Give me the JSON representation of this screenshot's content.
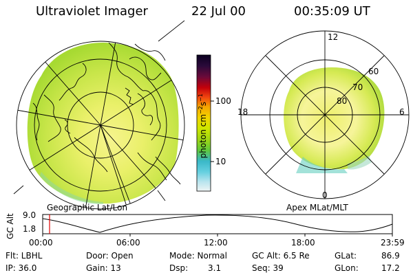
{
  "header": {
    "title": "Ultraviolet Imager",
    "date": "22 Jul 00",
    "time": "00:35:09 UT"
  },
  "geo_panel": {
    "label": "Geographic Lat/Lon"
  },
  "apex_panel": {
    "label": "Apex MLat/MLT",
    "mlt_labels": {
      "top": "12",
      "left": "18",
      "right": "6",
      "bottom": "0"
    },
    "lat_labels": [
      "60",
      "70",
      "80"
    ]
  },
  "colorbar": {
    "unit": "photon cm",
    "unit_exp1": "−2",
    "unit_s": "s",
    "unit_exp2": "−1",
    "ticks": [
      "100",
      "10"
    ],
    "colors": [
      "#0b0020",
      "#2a0a3a",
      "#5a0a3a",
      "#a3000a",
      "#e0101a",
      "#f05a10",
      "#f5a400",
      "#f2d500",
      "#cde600",
      "#9fd614",
      "#5fc83c",
      "#3ab8c8",
      "#66d0e0",
      "#b8e4ee",
      "#e2eef2"
    ]
  },
  "altitude": {
    "axis_label": "GC Alt",
    "y_ticks": [
      "9.0",
      "1.8"
    ],
    "x_ticks": [
      "00:00",
      "06:00",
      "12:00",
      "18:00",
      "23:59"
    ],
    "marker_time": "00:35:09",
    "curve_color": "#000000",
    "marker_color": "#e00000"
  },
  "status": {
    "flt": "Flt: LBHL",
    "ip": "IP: 36.0",
    "door": "Door: Open",
    "gain": "Gain: 13",
    "mode": "Mode: Normal",
    "dsp_label": "Dsp:",
    "dsp_value": "3.1",
    "gc_alt": "GC Alt: 6.5 Re",
    "seq": "Seq: 39",
    "glat_label": "GLat:",
    "glat_value": "86.9",
    "glon_label": "GLon:",
    "glon_value": "17.2"
  },
  "colors": {
    "aurora_yellow": "#f4f27a",
    "aurora_green": "#b9df3c",
    "aurora_cyan": "#62cfd2"
  }
}
